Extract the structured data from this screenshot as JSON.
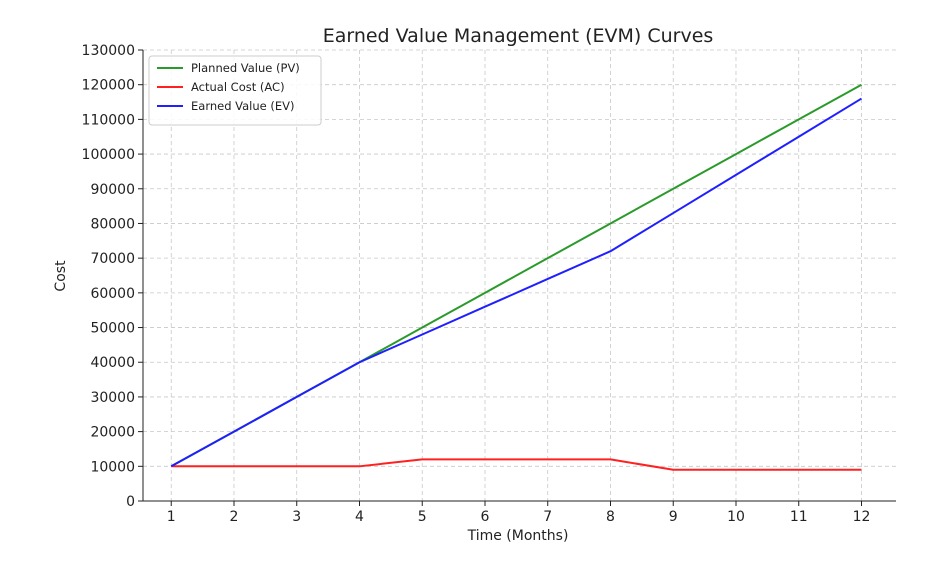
{
  "chart_data": {
    "type": "line",
    "title": "Earned Value Management (EVM) Curves",
    "xlabel": "Time (Months)",
    "ylabel": "Cost",
    "x": [
      1,
      2,
      3,
      4,
      5,
      6,
      7,
      8,
      9,
      10,
      11,
      12
    ],
    "xlim": [
      0.55,
      12.55
    ],
    "ylim": [
      0,
      130000
    ],
    "x_ticks": [
      1,
      2,
      3,
      4,
      5,
      6,
      7,
      8,
      9,
      10,
      11,
      12
    ],
    "y_ticks": [
      0,
      10000,
      20000,
      30000,
      40000,
      50000,
      60000,
      70000,
      80000,
      90000,
      100000,
      110000,
      120000,
      130000
    ],
    "grid": true,
    "legend_position": "top-left",
    "series": [
      {
        "name": "Planned Value (PV)",
        "color": "#2a9a2a",
        "values": [
          10000,
          20000,
          30000,
          40000,
          50000,
          60000,
          70000,
          80000,
          90000,
          100000,
          110000,
          120000
        ]
      },
      {
        "name": "Actual Cost (AC)",
        "color": "#ff2020",
        "values": [
          10000,
          10000,
          10000,
          10000,
          12000,
          12000,
          12000,
          12000,
          9000,
          9000,
          9000,
          9000
        ]
      },
      {
        "name": "Earned Value (EV)",
        "color": "#2020ff",
        "values": [
          10000,
          20000,
          30000,
          40000,
          48000,
          56000,
          64000,
          72000,
          83000,
          94000,
          105000,
          116000
        ]
      }
    ]
  }
}
